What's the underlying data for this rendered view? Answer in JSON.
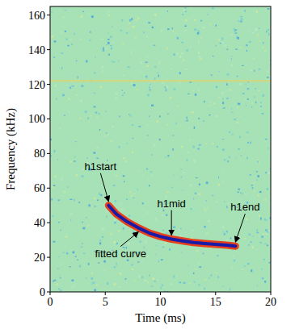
{
  "chart_data": {
    "type": "line",
    "x_label": "Time (ms)",
    "y_label": "Frequency (kHz)",
    "xlim": [
      0,
      20
    ],
    "ylim": [
      0,
      165
    ],
    "xticks": [
      0,
      5,
      10,
      15,
      20
    ],
    "yticks": [
      0,
      20,
      40,
      60,
      80,
      100,
      120,
      140,
      160
    ],
    "grid": false,
    "series": [
      {
        "color": "#1a1aa8",
        "x": [
          5.3,
          6,
          7,
          8,
          9,
          10,
          11,
          12,
          13,
          14,
          15,
          16,
          16.8
        ],
        "values": [
          50,
          45,
          40.5,
          37,
          34,
          32,
          30.5,
          29.5,
          28.5,
          28,
          27.5,
          27,
          26.5
        ]
      },
      {
        "color": "#d8d67a",
        "x": [
          0,
          20
        ],
        "values": [
          122,
          122
        ]
      }
    ],
    "annotations": [
      {
        "text": "h1start",
        "x": 5.3,
        "y": 50
      },
      {
        "text": "h1mid",
        "x": 11,
        "y": 30.5
      },
      {
        "text": "h1end",
        "x": 16.8,
        "y": 26.5
      },
      {
        "text": "fitted curve",
        "x": 8,
        "y": 37
      }
    ]
  }
}
